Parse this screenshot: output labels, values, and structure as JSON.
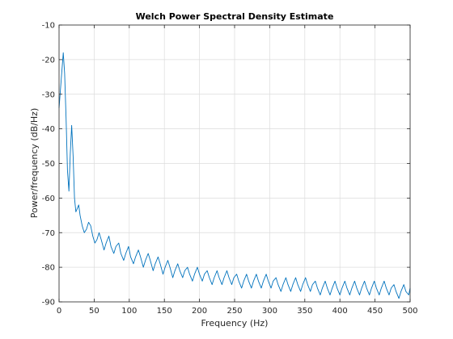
{
  "chart_data": {
    "type": "line",
    "title": "Welch Power Spectral Density Estimate",
    "xlabel": "Frequency (Hz)",
    "ylabel": "Power/frequency (dB/Hz)",
    "xlim": [
      0,
      500
    ],
    "ylim": [
      -90,
      -10
    ],
    "xticks": [
      0,
      50,
      100,
      150,
      200,
      250,
      300,
      350,
      400,
      450,
      500
    ],
    "yticks": [
      -90,
      -80,
      -70,
      -60,
      -50,
      -40,
      -30,
      -20,
      -10
    ],
    "grid": true,
    "legend": "none",
    "series": [
      {
        "color": "#0072bd",
        "x": [
          0,
          3,
          6,
          8,
          10,
          12,
          14,
          16,
          18,
          20,
          22,
          24,
          26,
          28,
          30,
          33,
          36,
          39,
          42,
          45,
          48,
          51,
          54,
          57,
          60,
          64,
          67,
          71,
          74,
          78,
          81,
          85,
          88,
          92,
          95,
          99,
          102,
          106,
          109,
          113,
          116,
          120,
          123,
          127,
          130,
          134,
          137,
          141,
          144,
          148,
          151,
          155,
          158,
          162,
          165,
          169,
          172,
          176,
          179,
          183,
          186,
          190,
          193,
          197,
          200,
          204,
          207,
          211,
          214,
          218,
          221,
          225,
          228,
          232,
          235,
          239,
          242,
          246,
          249,
          253,
          256,
          260,
          263,
          267,
          270,
          274,
          277,
          281,
          284,
          288,
          291,
          295,
          298,
          302,
          305,
          309,
          312,
          316,
          319,
          323,
          326,
          330,
          333,
          337,
          340,
          344,
          347,
          351,
          354,
          358,
          361,
          365,
          368,
          372,
          375,
          379,
          382,
          386,
          389,
          393,
          396,
          400,
          403,
          407,
          410,
          414,
          417,
          421,
          424,
          428,
          431,
          435,
          438,
          442,
          445,
          449,
          452,
          456,
          459,
          463,
          466,
          470,
          473,
          477,
          480,
          484,
          487,
          491,
          494,
          498,
          500
        ],
        "y": [
          -34,
          -26,
          -18,
          -24,
          -37,
          -52,
          -58,
          -47,
          -39,
          -48,
          -60,
          -64,
          -63,
          -62,
          -65,
          -68,
          -70,
          -69,
          -67,
          -68,
          -71,
          -73,
          -72,
          -70,
          -72,
          -75,
          -73,
          -71,
          -74,
          -76,
          -74,
          -73,
          -76,
          -78,
          -76,
          -74,
          -77,
          -79,
          -77,
          -75,
          -77,
          -80,
          -78,
          -76,
          -78,
          -81,
          -79,
          -77,
          -79,
          -82,
          -80,
          -78,
          -80,
          -83,
          -81,
          -79,
          -81,
          -83,
          -81,
          -80,
          -82,
          -84,
          -82,
          -80,
          -82,
          -84,
          -82,
          -81,
          -83,
          -85,
          -83,
          -81,
          -83,
          -85,
          -83,
          -81,
          -83,
          -85,
          -83,
          -82,
          -84,
          -86,
          -84,
          -82,
          -84,
          -86,
          -84,
          -82,
          -84,
          -86,
          -84,
          -82,
          -84,
          -86,
          -84,
          -83,
          -85,
          -87,
          -85,
          -83,
          -85,
          -87,
          -85,
          -83,
          -85,
          -87,
          -85,
          -83,
          -85,
          -87,
          -85,
          -84,
          -86,
          -88,
          -86,
          -84,
          -86,
          -88,
          -86,
          -84,
          -86,
          -88,
          -86,
          -84,
          -86,
          -88,
          -86,
          -84,
          -86,
          -88,
          -86,
          -84,
          -86,
          -88,
          -86,
          -84,
          -86,
          -88,
          -86,
          -84,
          -86,
          -88,
          -86,
          -85,
          -87,
          -89,
          -87,
          -85,
          -87,
          -88,
          -86
        ]
      }
    ]
  }
}
